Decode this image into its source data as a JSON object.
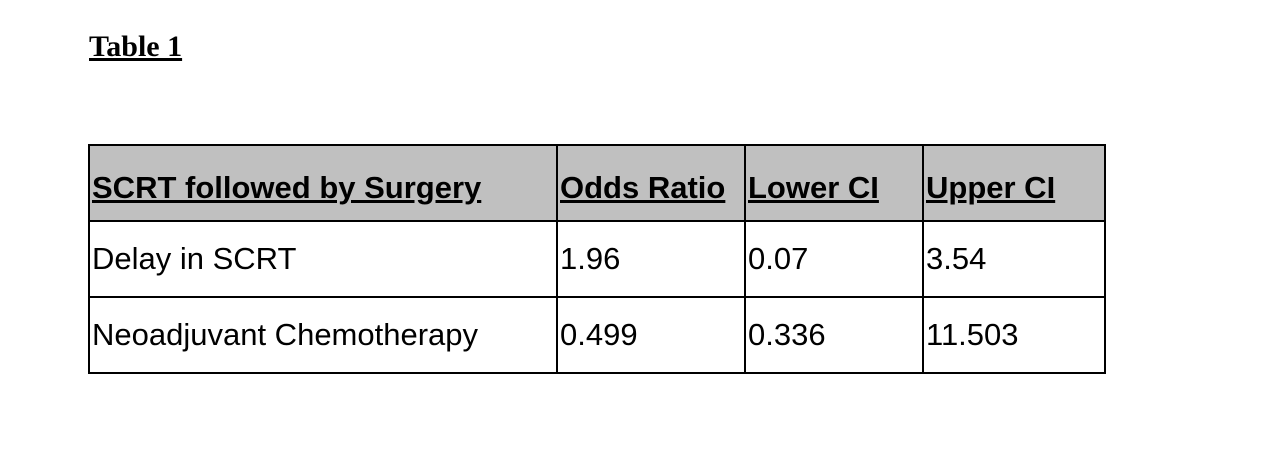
{
  "title": "Table 1",
  "table": {
    "header": [
      "SCRT followed by Surgery",
      "Odds Ratio",
      "Lower CI",
      "Upper CI"
    ],
    "rows": [
      [
        "Delay in SCRT",
        "1.96",
        "0.07",
        "3.54"
      ],
      [
        "Neoadjuvant Chemotherapy",
        "0.499",
        "0.336",
        "11.503"
      ]
    ]
  }
}
